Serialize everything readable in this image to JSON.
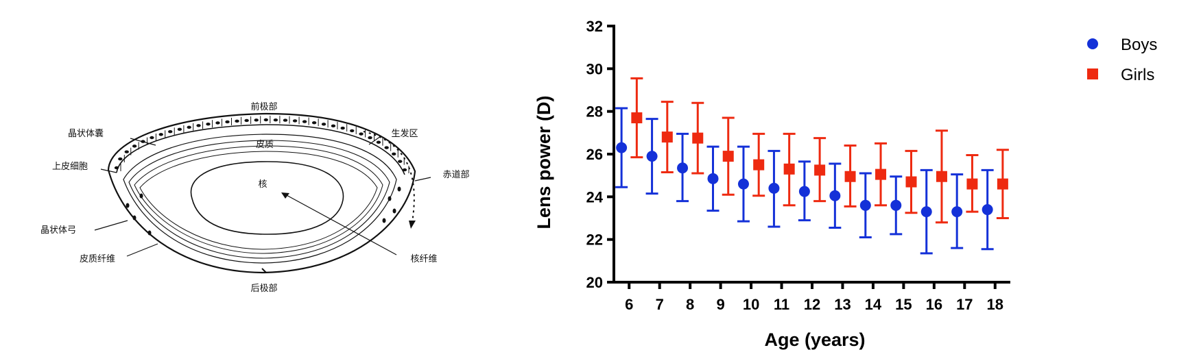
{
  "diagram": {
    "labels": {
      "anterior_pole": "前极部",
      "lens_capsule": "晶状体囊",
      "germinative_zone": "生发区",
      "cortex": "皮质",
      "epithelial_cells": "上皮细胞",
      "equator": "赤道部",
      "nucleus": "核",
      "lens_bow": "晶状体弓",
      "cortical_fibers": "皮质纤维",
      "nuclear_fibers": "核纤维",
      "posterior_pole": "后极部"
    }
  },
  "chart_data": {
    "type": "scatter",
    "error_bars": true,
    "categories": [
      "6",
      "7",
      "8",
      "9",
      "10",
      "11",
      "12",
      "13",
      "14",
      "15",
      "16",
      "17",
      "18"
    ],
    "xlabel": "Age (years)",
    "ylabel": "Lens power (D)",
    "ylim": [
      20,
      32
    ],
    "yticks": [
      20,
      22,
      24,
      26,
      28,
      30,
      32
    ],
    "grid": false,
    "legend_position": "top-right",
    "series": [
      {
        "name": "Boys",
        "marker": "circle",
        "color": "#1431d8",
        "values": [
          26.3,
          25.9,
          25.35,
          24.85,
          24.6,
          24.4,
          24.25,
          24.05,
          23.6,
          23.6,
          23.3,
          23.3,
          23.4
        ],
        "lower": [
          24.45,
          24.15,
          23.8,
          23.35,
          22.85,
          22.6,
          22.9,
          22.55,
          22.1,
          22.25,
          21.35,
          21.6,
          21.55
        ],
        "upper": [
          28.15,
          27.65,
          26.95,
          26.35,
          26.35,
          26.15,
          25.65,
          25.55,
          25.1,
          24.95,
          25.25,
          25.05,
          25.25
        ]
      },
      {
        "name": "Girls",
        "marker": "square",
        "color": "#ee2a10",
        "values": [
          27.7,
          26.8,
          26.75,
          25.9,
          25.5,
          25.3,
          25.25,
          24.95,
          25.05,
          24.7,
          24.95,
          24.6,
          24.6
        ],
        "lower": [
          25.85,
          25.15,
          25.1,
          24.1,
          24.05,
          23.6,
          23.8,
          23.55,
          23.6,
          23.25,
          22.8,
          23.3,
          23.0
        ],
        "upper": [
          29.55,
          28.45,
          28.4,
          27.7,
          26.95,
          26.95,
          26.75,
          26.4,
          26.5,
          26.15,
          27.1,
          25.95,
          26.2
        ]
      }
    ]
  }
}
